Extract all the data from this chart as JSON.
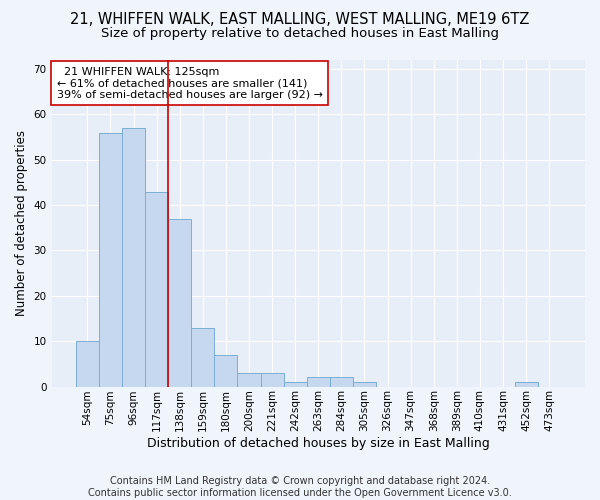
{
  "title1": "21, WHIFFEN WALK, EAST MALLING, WEST MALLING, ME19 6TZ",
  "title2": "Size of property relative to detached houses in East Malling",
  "xlabel": "Distribution of detached houses by size in East Malling",
  "ylabel": "Number of detached properties",
  "categories": [
    "54sqm",
    "75sqm",
    "96sqm",
    "117sqm",
    "138sqm",
    "159sqm",
    "180sqm",
    "200sqm",
    "221sqm",
    "242sqm",
    "263sqm",
    "284sqm",
    "305sqm",
    "326sqm",
    "347sqm",
    "368sqm",
    "389sqm",
    "410sqm",
    "431sqm",
    "452sqm",
    "473sqm"
  ],
  "values": [
    10,
    56,
    57,
    43,
    37,
    13,
    7,
    3,
    3,
    1,
    2,
    2,
    1,
    0,
    0,
    0,
    0,
    0,
    0,
    1,
    0
  ],
  "bar_color": "#c5d8f0",
  "bar_edge_color": "#7badd4",
  "vline_x": 3.5,
  "vline_color": "#cc0000",
  "annotation_text": "  21 WHIFFEN WALK: 125sqm  \n← 61% of detached houses are smaller (141)\n39% of semi-detached houses are larger (92) →",
  "annotation_box_color": "#ffffff",
  "annotation_box_edge": "#cc0000",
  "ylim": [
    0,
    72
  ],
  "yticks": [
    0,
    10,
    20,
    30,
    40,
    50,
    60,
    70
  ],
  "bg_color": "#f0f4fb",
  "plot_bg_color": "#e8eef8",
  "footer": "Contains HM Land Registry data © Crown copyright and database right 2024.\nContains public sector information licensed under the Open Government Licence v3.0.",
  "title1_fontsize": 10.5,
  "title2_fontsize": 9.5,
  "xlabel_fontsize": 9,
  "ylabel_fontsize": 8.5,
  "annotation_fontsize": 8,
  "footer_fontsize": 7,
  "tick_fontsize": 7.5
}
